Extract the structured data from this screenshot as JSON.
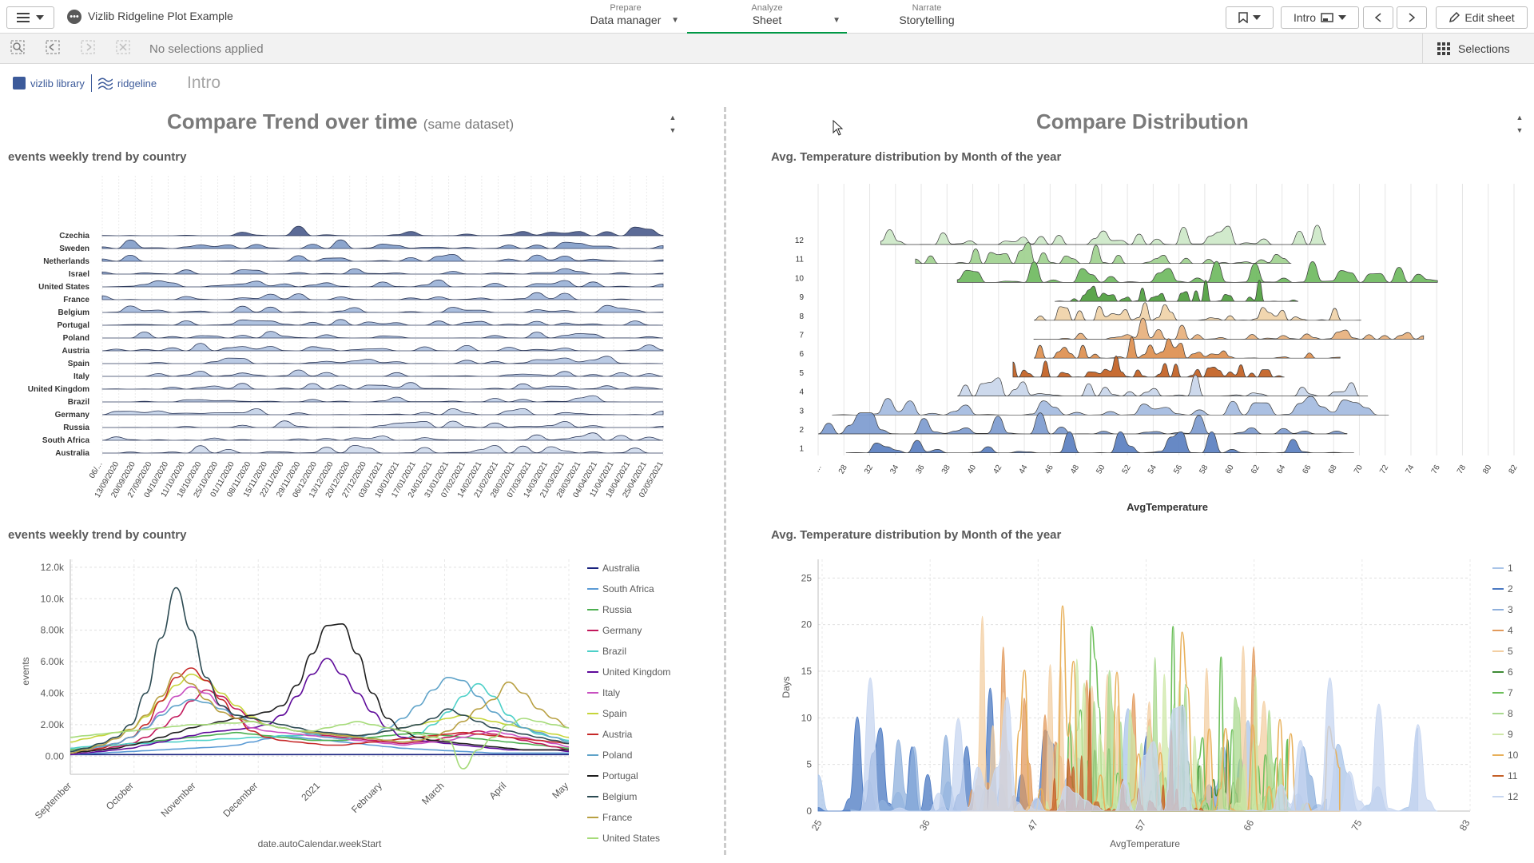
{
  "topbar": {
    "app_title": "Vizlib Ridgeline Plot Example",
    "tabs": [
      {
        "small": "Prepare",
        "big": "Data manager"
      },
      {
        "small": "Analyze",
        "big": "Sheet"
      },
      {
        "small": "Narrate",
        "big": "Storytelling"
      }
    ],
    "sheet_nav_label": "Intro",
    "edit_label": "Edit sheet"
  },
  "selbar": {
    "text": "No selections applied",
    "selections_label": "Selections"
  },
  "sheet": {
    "logo_vizlib": "vizlib library",
    "logo_ridgeline": "ridgeline",
    "title": "Intro",
    "left_heading": "Compare Trend over time",
    "left_heading_sub": "(same dataset)",
    "right_heading": "Compare Distribution"
  },
  "charts": {
    "ridge_country_title": "events weekly trend by country",
    "ridge_month_title": "Avg. Temperature distribution by Month of the year",
    "line_country_title": "events weekly trend by country",
    "area_month_title": "Avg. Temperature distribution by Month of the year"
  },
  "chart_data": [
    {
      "type": "area",
      "title": "events weekly trend by country",
      "series_labels": [
        "Czechia",
        "Sweden",
        "Netherlands",
        "Israel",
        "United States",
        "France",
        "Belgium",
        "Portugal",
        "Poland",
        "Austria",
        "Spain",
        "Italy",
        "United Kingdom",
        "Brazil",
        "Germany",
        "Russia",
        "South Africa",
        "Australia"
      ],
      "x_ticks": [
        "06/...",
        "13/09/2020",
        "20/09/2020",
        "27/09/2020",
        "04/10/2020",
        "11/10/2020",
        "18/10/2020",
        "25/10/2020",
        "01/11/2020",
        "08/11/2020",
        "15/11/2020",
        "22/11/2020",
        "29/11/2020",
        "06/12/2020",
        "13/12/2020",
        "20/12/2020",
        "27/12/2020",
        "03/01/2021",
        "10/01/2021",
        "17/01/2021",
        "24/01/2021",
        "31/01/2021",
        "07/02/2021",
        "14/02/2021",
        "21/02/2021",
        "28/02/2021",
        "07/03/2021",
        "14/03/2021",
        "21/03/2021",
        "28/03/2021",
        "04/04/2021",
        "11/04/2021",
        "18/04/2021",
        "25/04/2021",
        "02/05/2021"
      ]
    },
    {
      "type": "area",
      "title": "Avg. Temperature distribution by Month of the year",
      "series_labels": [
        "12",
        "11",
        "10",
        "9",
        "8",
        "7",
        "6",
        "5",
        "4",
        "3",
        "2",
        "1"
      ],
      "x_ticks": [
        "...",
        "28",
        "32",
        "34",
        "36",
        "38",
        "40",
        "42",
        "44",
        "46",
        "48",
        "50",
        "52",
        "54",
        "56",
        "58",
        "60",
        "62",
        "64",
        "66",
        "68",
        "70",
        "72",
        "74",
        "76",
        "78",
        "80",
        "82"
      ],
      "xlabel": "AvgTemperature",
      "colors": [
        "#cde8c8",
        "#9fd18f",
        "#6fba5f",
        "#4e9e3e",
        "#f0d2a8",
        "#e7b07c",
        "#dd8f4f",
        "#c25f22",
        "#c9d6ea",
        "#a4bbdf",
        "#7d9bcf",
        "#5a7fc0"
      ]
    },
    {
      "type": "line",
      "title": "events weekly trend by country",
      "xlabel": "date.autoCalendar.weekStart",
      "ylabel": "events",
      "x_ticks": [
        "September",
        "October",
        "November",
        "December",
        "2021",
        "February",
        "March",
        "April",
        "May"
      ],
      "y_ticks": [
        "0.00",
        "2.00k",
        "4.00k",
        "6.00k",
        "8.00k",
        "10.0k",
        "12.0k"
      ],
      "ylim": [
        -1000,
        12500
      ],
      "series": [
        {
          "name": "Australia",
          "color": "#1a237e",
          "values": [
            100,
            100,
            100,
            100,
            100,
            100,
            100,
            100,
            100,
            100,
            100,
            100,
            100,
            100,
            100,
            100,
            100,
            100,
            100,
            100,
            100,
            100,
            100,
            100,
            100,
            100,
            100,
            100,
            100,
            100,
            100,
            100,
            100,
            100
          ]
        },
        {
          "name": "South Africa",
          "color": "#5b9bd5",
          "values": [
            100,
            150,
            200,
            250,
            300,
            350,
            400,
            450,
            500,
            550,
            600,
            700,
            900,
            1100,
            1300,
            1200,
            1100,
            1000,
            900,
            800,
            700,
            600,
            500,
            450,
            400,
            350,
            300,
            250,
            200,
            200,
            200,
            200,
            200,
            200
          ]
        },
        {
          "name": "Russia",
          "color": "#4caf50",
          "values": [
            400,
            500,
            600,
            700,
            800,
            900,
            1000,
            1100,
            1200,
            1300,
            1400,
            1500,
            1400,
            1300,
            1200,
            1100,
            1000,
            1000,
            1000,
            1100,
            1200,
            1300,
            1400,
            1500,
            1400,
            1300,
            1200,
            1100,
            1000,
            900,
            800,
            700,
            600,
            500
          ]
        },
        {
          "name": "Germany",
          "color": "#c2185b",
          "values": [
            200,
            300,
            400,
            600,
            800,
            1200,
            1800,
            2500,
            3500,
            4200,
            3800,
            3000,
            2400,
            2000,
            1800,
            1600,
            1400,
            1300,
            1200,
            1100,
            1000,
            900,
            800,
            900,
            1000,
            1200,
            1400,
            1600,
            1400,
            1200,
            1000,
            800,
            600,
            400
          ]
        },
        {
          "name": "Brazil",
          "color": "#4dd0c8",
          "values": [
            500,
            600,
            700,
            700,
            800,
            800,
            900,
            900,
            1000,
            1000,
            1100,
            1100,
            1200,
            1200,
            1300,
            1300,
            1400,
            1400,
            1300,
            1200,
            1100,
            1000,
            1100,
            1400,
            2000,
            2800,
            3800,
            4600,
            3800,
            2600,
            1800,
            1400,
            1200,
            1000
          ]
        },
        {
          "name": "United Kingdom",
          "color": "#5e0a9a",
          "values": [
            100,
            200,
            300,
            400,
            500,
            700,
            900,
            1100,
            1300,
            1500,
            1600,
            1700,
            1800,
            2000,
            2600,
            3800,
            5200,
            6200,
            5200,
            4000,
            2800,
            1800,
            1200,
            1000,
            900,
            800,
            700,
            600,
            500,
            400,
            400,
            400,
            400,
            300
          ]
        },
        {
          "name": "Italy",
          "color": "#c850c0",
          "values": [
            300,
            400,
            600,
            800,
            1200,
            1800,
            2800,
            3800,
            4400,
            4000,
            3200,
            2400,
            1800,
            1600,
            1500,
            1400,
            1300,
            1200,
            1100,
            1000,
            900,
            800,
            700,
            800,
            900,
            1000,
            1200,
            1400,
            1600,
            1400,
            1200,
            1000,
            800,
            600
          ]
        },
        {
          "name": "Spain",
          "color": "#c6d53a",
          "values": [
            900,
            1100,
            1300,
            1500,
            1700,
            2500,
            3500,
            4500,
            5200,
            4800,
            4000,
            3200,
            2500,
            2000,
            1800,
            1600,
            1500,
            1400,
            1300,
            1300,
            1400,
            1600,
            1800,
            2000,
            2200,
            2400,
            2600,
            2400,
            2200,
            2000,
            1800,
            1600,
            1400,
            1200
          ]
        },
        {
          "name": "Austria",
          "color": "#c62828",
          "values": [
            200,
            300,
            500,
            800,
            1200,
            2000,
            3500,
            5000,
            5600,
            4800,
            3600,
            2400,
            1600,
            1200,
            1000,
            900,
            800,
            700,
            700,
            800,
            900,
            1000,
            1100,
            1200,
            1300,
            1400,
            1500,
            1400,
            1300,
            1200,
            1100,
            1000,
            900,
            800
          ]
        },
        {
          "name": "Poland",
          "color": "#5fa3c9",
          "values": [
            300,
            400,
            600,
            800,
            1200,
            1800,
            2600,
            3200,
            3600,
            3400,
            3000,
            2600,
            2200,
            2000,
            1800,
            1600,
            1400,
            1200,
            1100,
            1200,
            1400,
            1800,
            2400,
            3200,
            4200,
            5000,
            4800,
            3800,
            2800,
            2200,
            1800,
            1500,
            1200,
            900
          ]
        },
        {
          "name": "Portugal",
          "color": "#1f1f1f",
          "values": [
            200,
            300,
            400,
            500,
            700,
            900,
            1200,
            1500,
            1800,
            2000,
            2200,
            2400,
            2600,
            2800,
            3200,
            4500,
            6500,
            8300,
            8400,
            6500,
            4000,
            2400,
            1600,
            1200,
            1000,
            900,
            800,
            700,
            600,
            500,
            400,
            400,
            400,
            400
          ]
        },
        {
          "name": "Belgium",
          "color": "#2c4a52",
          "values": [
            300,
            500,
            800,
            1200,
            2000,
            4000,
            7500,
            10700,
            8000,
            5000,
            3200,
            2600,
            2400,
            2200,
            2000,
            1800,
            1600,
            1500,
            1400,
            1300,
            1400,
            1600,
            1800,
            2000,
            2400,
            3000,
            2600,
            2200,
            1800,
            1600,
            1400,
            1200,
            1000,
            800
          ]
        },
        {
          "name": "France",
          "color": "#b8a042",
          "values": [
            200,
            400,
            700,
            1100,
            1700,
            2600,
            3800,
            5300,
            4600,
            3600,
            2800,
            2400,
            2200,
            2000,
            1800,
            1600,
            1500,
            1400,
            1300,
            1200,
            1100,
            1000,
            900,
            1000,
            1200,
            1600,
            2200,
            3000,
            3600,
            4700,
            4000,
            3000,
            2400,
            1800
          ]
        },
        {
          "name": "United States",
          "color": "#a6db7a",
          "values": [
            1200,
            1300,
            1400,
            1500,
            1600,
            1700,
            1800,
            1900,
            2000,
            2000,
            2100,
            2100,
            2200,
            2000,
            1800,
            1600,
            1600,
            1800,
            2000,
            2200,
            2000,
            1800,
            1600,
            1400,
            1200,
            1000,
            -800,
            400,
            1200,
            2000,
            2400,
            2200,
            2000,
            1800
          ]
        }
      ]
    },
    {
      "type": "area",
      "title": "Avg. Temperature distribution by Month of the year",
      "xlabel": "AvgTemperature",
      "ylabel": "Days",
      "x_ticks": [
        "25",
        "36",
        "47",
        "57",
        "66",
        "75",
        "83"
      ],
      "y_ticks": [
        "0",
        "5",
        "10",
        "15",
        "20",
        "25"
      ],
      "ylim": [
        0,
        27
      ],
      "legend": [
        "1",
        "2",
        "3",
        "4",
        "5",
        "6",
        "7",
        "8",
        "9",
        "10",
        "11",
        "12"
      ],
      "colors": [
        "#a9c4e8",
        "#4a78c2",
        "#8fb0dc",
        "#e29a5c",
        "#f3cfa3",
        "#3e8a35",
        "#6cbf5a",
        "#a9d98f",
        "#cfe8a8",
        "#e8b05a",
        "#c56028",
        "#c7d6f0"
      ]
    }
  ]
}
